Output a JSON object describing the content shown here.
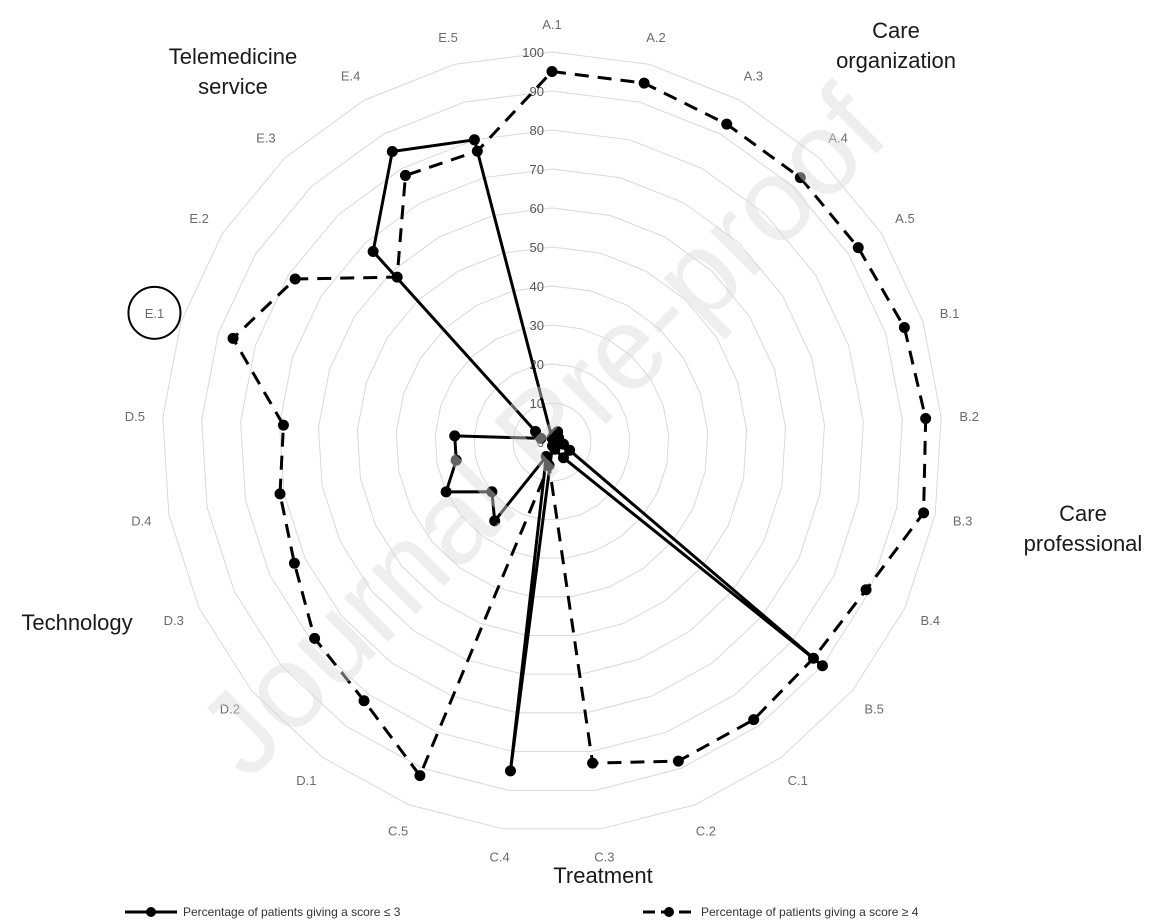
{
  "chart_data": {
    "type": "radar",
    "axes": [
      "A.1",
      "A.2",
      "A.3",
      "A.4",
      "A.5",
      "B.1",
      "B.2",
      "B.3",
      "B.4",
      "B.5",
      "C.1",
      "C.2",
      "C.3",
      "C.4",
      "C.5",
      "D.1",
      "D.2",
      "D.3",
      "D.4",
      "D.5",
      "E.1",
      "E.2",
      "E.3",
      "E.4",
      "E.5"
    ],
    "r_ticks": [
      "0",
      "10",
      "20",
      "30",
      "40",
      "50",
      "60",
      "70",
      "80",
      "90",
      "100"
    ],
    "rlim": [
      0,
      100
    ],
    "grid": true,
    "highlighted_axis": "E.1",
    "groups": [
      {
        "label": [
          "Care",
          "organization"
        ]
      },
      {
        "label": [
          "Care",
          "professional"
        ]
      },
      {
        "label": [
          "Treatment"
        ]
      },
      {
        "label": [
          "Technology"
        ]
      },
      {
        "label": [
          "Telemedicine",
          "service"
        ]
      }
    ],
    "series": [
      {
        "name": "Percentage of patients giving a score ≤ 3",
        "style": "solid",
        "values": [
          1,
          2,
          3,
          2,
          2,
          1,
          2,
          3,
          5,
          90,
          5,
          2,
          1,
          85,
          4,
          25,
          20,
          30,
          25,
          25,
          3,
          5,
          67,
          85,
          80
        ]
      },
      {
        "name": "Percentage of patients giving a score ≥ 4",
        "style": "dashed",
        "values": [
          95,
          95,
          93,
          93,
          93,
          95,
          96,
          97,
          89,
          87,
          88,
          88,
          83,
          6,
          92,
          82,
          79,
          73,
          71,
          69,
          86,
          78,
          58,
          78,
          77
        ]
      }
    ],
    "watermark": "Journal Pre-proof",
    "legend_position": "bottom",
    "colors": {
      "line": "#000000",
      "grid": "#d9d9d9"
    }
  }
}
